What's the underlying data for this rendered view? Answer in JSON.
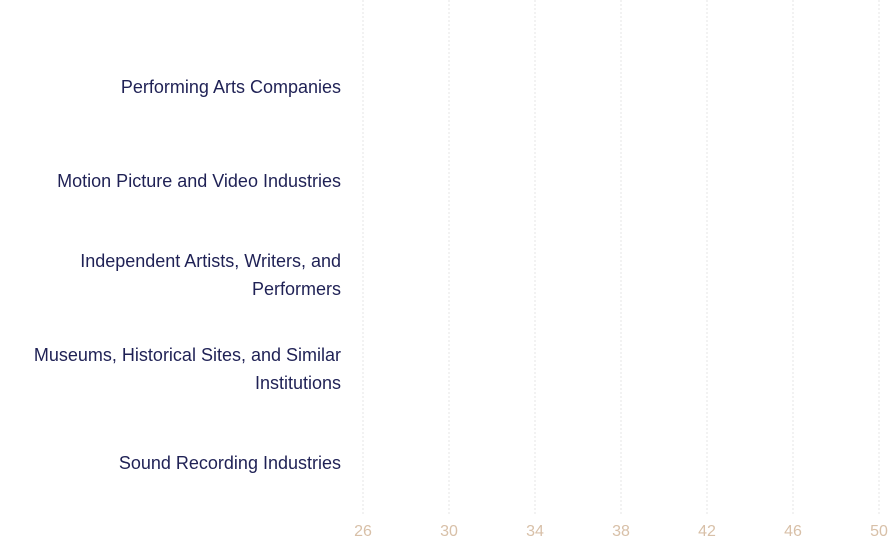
{
  "chart_data": {
    "type": "bar",
    "orientation": "horizontal",
    "categories": [
      "Performing Arts Companies",
      "Motion Picture and Video Industries",
      "Independent Artists, Writers, and Performers",
      "Museums, Historical Sites, and Similar Institutions",
      "Sound Recording Industries"
    ],
    "xlim": [
      26,
      50
    ],
    "xticks": [
      26,
      30,
      34,
      38,
      42,
      46,
      50
    ],
    "grid": true
  }
}
